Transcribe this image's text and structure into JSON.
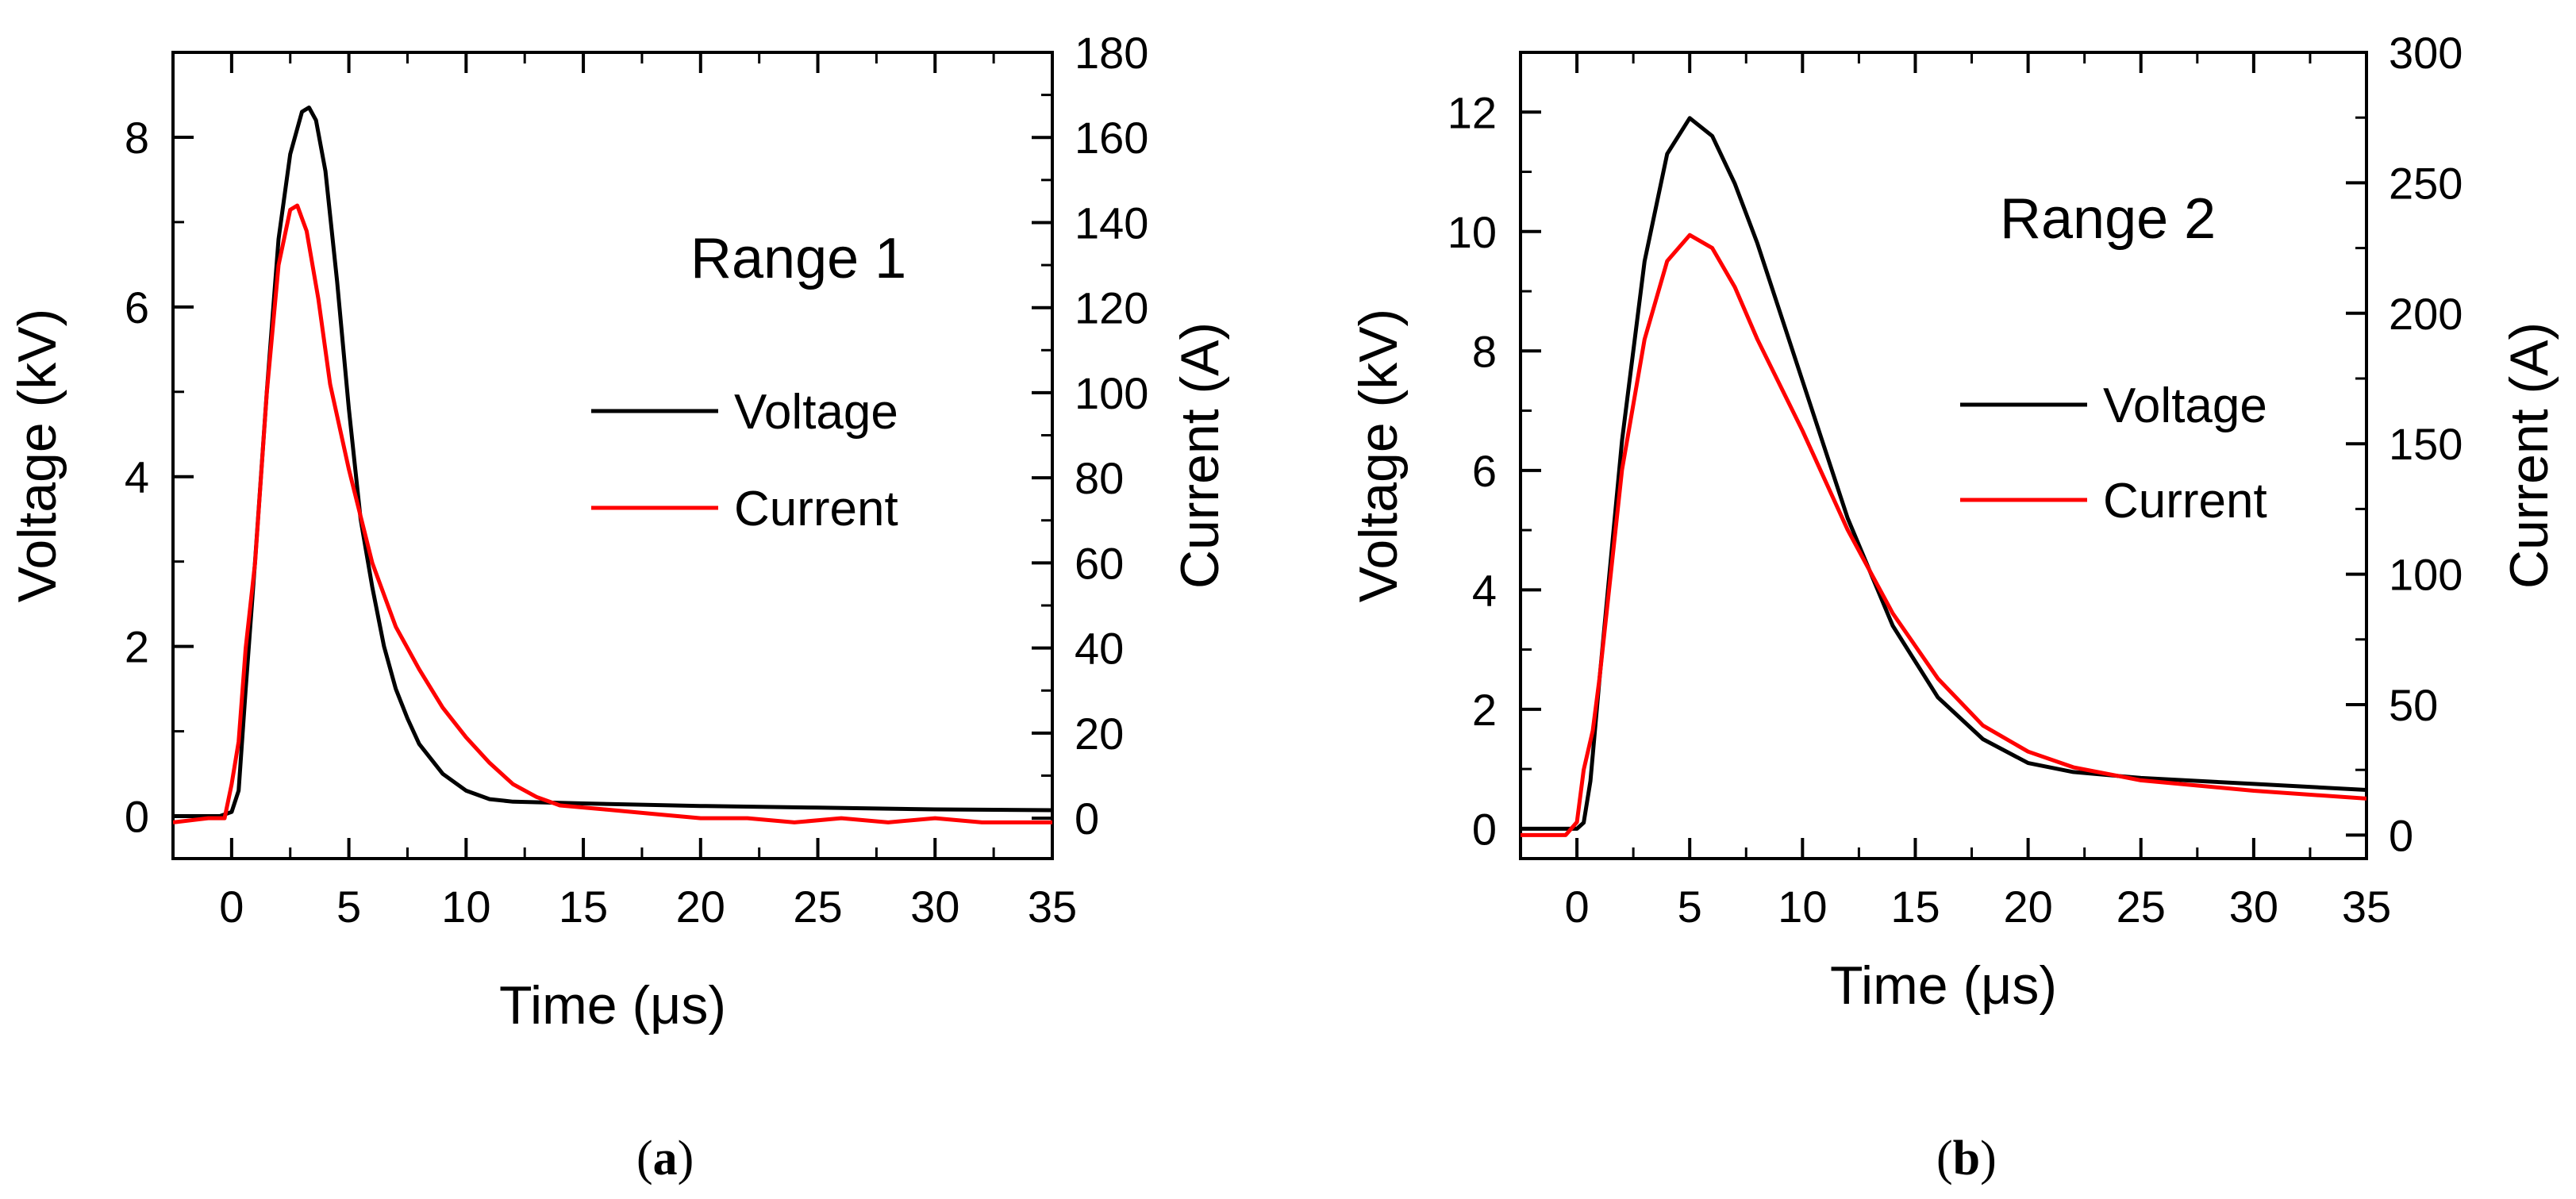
{
  "chart_data": [
    {
      "type": "line",
      "panel": "a",
      "caption": {
        "open": "(",
        "letter": "a",
        "close": ")"
      },
      "annotation": "Range 1",
      "xlabel": "Time (μs)",
      "ylabel": "Voltage (kV)",
      "ylabel_right": "Current (A)",
      "xlim": [
        -2.5,
        35
      ],
      "ylim": [
        -0.5,
        9
      ],
      "ylim_right": [
        -9.5,
        180
      ],
      "xticks": [
        0,
        5,
        10,
        15,
        20,
        25,
        30,
        35
      ],
      "yticks": [
        0,
        2,
        4,
        6,
        8
      ],
      "yticks_right": [
        0,
        20,
        40,
        60,
        80,
        100,
        120,
        140,
        160,
        180
      ],
      "legend": {
        "position": "center-right",
        "entries": [
          "Voltage",
          "Current"
        ]
      },
      "colors": {
        "Voltage": "#000000",
        "Current": "#ff0000"
      },
      "series": [
        {
          "name": "Voltage",
          "axis": "left",
          "x": [
            -2.5,
            -0.5,
            0,
            0.3,
            0.6,
            1,
            1.5,
            2,
            2.5,
            3,
            3.3,
            3.6,
            4,
            4.5,
            5,
            5.5,
            6,
            6.5,
            7,
            7.5,
            8,
            9,
            10,
            11,
            12,
            15,
            20,
            25,
            30,
            35
          ],
          "y": [
            0,
            0,
            0.05,
            0.3,
            1.5,
            3.0,
            5.0,
            6.8,
            7.8,
            8.3,
            8.35,
            8.2,
            7.6,
            6.3,
            4.8,
            3.5,
            2.7,
            2.0,
            1.5,
            1.15,
            0.85,
            0.5,
            0.3,
            0.2,
            0.17,
            0.15,
            0.12,
            0.1,
            0.08,
            0.07
          ]
        },
        {
          "name": "Current",
          "axis": "right",
          "x": [
            -2.5,
            -1,
            -0.3,
            0,
            0.3,
            0.6,
            1,
            1.5,
            2,
            2.5,
            2.8,
            3.2,
            3.7,
            4.2,
            5,
            6,
            7,
            8,
            9,
            10,
            11,
            12,
            13,
            14,
            16,
            18,
            20,
            22,
            24,
            26,
            28,
            30,
            32,
            35
          ],
          "y": [
            -1,
            0,
            0,
            8,
            18,
            40,
            60,
            100,
            130,
            143,
            144,
            138,
            122,
            102,
            82,
            60,
            45,
            35,
            26,
            19,
            13,
            8,
            5,
            3,
            2,
            1,
            0,
            0,
            -1,
            0,
            -1,
            0,
            -1,
            -1
          ]
        }
      ]
    },
    {
      "type": "line",
      "panel": "b",
      "caption": {
        "open": "(",
        "letter": "b",
        "close": ")"
      },
      "annotation": "Range 2",
      "xlabel": "Time (μs)",
      "ylabel": "Voltage (kV)",
      "ylabel_right": "Current (A)",
      "xlim": [
        -2.5,
        35
      ],
      "ylim": [
        -0.5,
        13
      ],
      "ylim_right": [
        -9,
        300
      ],
      "xticks": [
        0,
        5,
        10,
        15,
        20,
        25,
        30,
        35
      ],
      "yticks": [
        0,
        2,
        4,
        6,
        8,
        10,
        12
      ],
      "yticks_right": [
        0,
        50,
        100,
        150,
        200,
        250,
        300
      ],
      "legend": {
        "position": "center-right",
        "entries": [
          "Voltage",
          "Current"
        ]
      },
      "colors": {
        "Voltage": "#000000",
        "Current": "#ff0000"
      },
      "series": [
        {
          "name": "Voltage",
          "axis": "left",
          "x": [
            -2.5,
            0,
            0.3,
            0.6,
            1,
            1.5,
            2,
            3,
            4,
            5,
            6,
            7,
            8,
            10,
            12,
            14,
            16,
            18,
            20,
            22,
            25,
            30,
            35
          ],
          "y": [
            0,
            0,
            0.1,
            0.8,
            2.5,
            4.5,
            6.5,
            9.5,
            11.3,
            11.9,
            11.6,
            10.8,
            9.8,
            7.5,
            5.2,
            3.4,
            2.2,
            1.5,
            1.1,
            0.95,
            0.85,
            0.75,
            0.65
          ]
        },
        {
          "name": "Current",
          "axis": "right",
          "x": [
            -2.5,
            -0.5,
            0,
            0.3,
            0.7,
            1,
            1.5,
            2,
            3,
            4,
            5,
            6,
            7,
            8,
            10,
            12,
            14,
            16,
            18,
            20,
            22,
            25,
            30,
            35
          ],
          "y": [
            0,
            0,
            5,
            25,
            40,
            60,
            100,
            140,
            190,
            220,
            230,
            225,
            210,
            190,
            155,
            117,
            85,
            60,
            42,
            32,
            26,
            21,
            17,
            14
          ]
        }
      ]
    }
  ]
}
